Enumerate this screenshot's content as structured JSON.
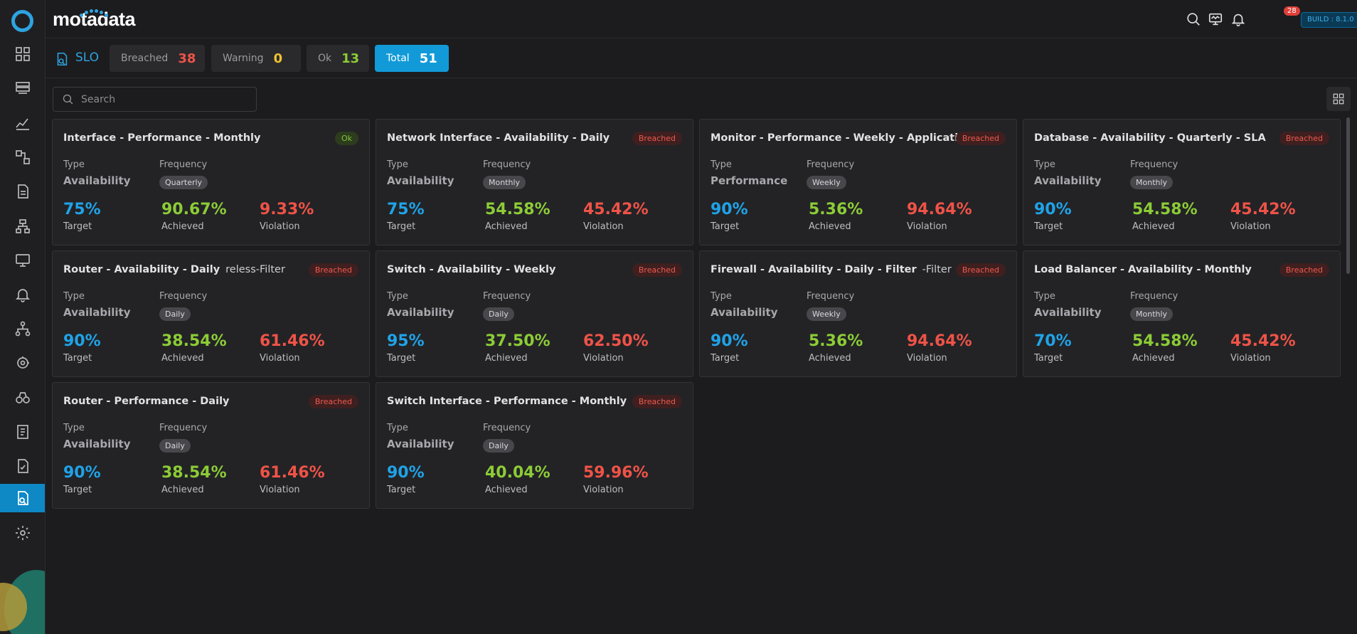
{
  "brand": {
    "name": "motadata"
  },
  "sidebar": {
    "items": [
      {
        "icon": "dashboard-icon"
      },
      {
        "icon": "inventory-icon"
      },
      {
        "icon": "metric-explorer-icon"
      },
      {
        "icon": "flow-icon"
      },
      {
        "icon": "log-icon"
      },
      {
        "icon": "topology-icon"
      },
      {
        "icon": "monitor-icon"
      },
      {
        "icon": "alert-bell-icon"
      },
      {
        "icon": "network-icon"
      },
      {
        "icon": "automation-icon"
      },
      {
        "icon": "binoculars-icon"
      },
      {
        "icon": "report-icon"
      },
      {
        "icon": "audit-icon"
      },
      {
        "icon": "slo-icon",
        "active": true
      },
      {
        "icon": "settings-icon"
      }
    ]
  },
  "header": {
    "notification_count": "28",
    "build_label": "BUILD : 8.1.0"
  },
  "page": {
    "title": "SLO",
    "chips": [
      {
        "label": "Breached",
        "value": "38",
        "color": "#ef5347"
      },
      {
        "label": "Warning",
        "value": "0",
        "color": "#f2c230"
      },
      {
        "label": "Ok",
        "value": "13",
        "color": "#8ccc36"
      },
      {
        "label": "Total",
        "value": "51",
        "color": "#ffffff",
        "selected": true
      }
    ]
  },
  "search": {
    "placeholder": "Search",
    "value": ""
  },
  "cards": [
    {
      "title": "Interface - Performance - Monthly",
      "title_tail": "",
      "status": "Ok",
      "type_label": "Type",
      "type": "Availability",
      "frequency_label": "Frequency",
      "frequency": "Quarterly",
      "target": "75%",
      "achieved": "90.67%",
      "violation": "9.33%",
      "target_label": "Target",
      "achieved_label": "Achieved",
      "violation_label": "Violation"
    },
    {
      "title": "Network Interface - Availability - Daily",
      "title_tail": "",
      "status": "Breached",
      "type_label": "Type",
      "type": "Availability",
      "frequency_label": "Frequency",
      "frequency": "Monthly",
      "target": "75%",
      "achieved": "54.58%",
      "violation": "45.42%",
      "target_label": "Target",
      "achieved_label": "Achieved",
      "violation_label": "Violation"
    },
    {
      "title": "Monitor - Performance - Weekly - Application",
      "title_tail": "",
      "status": "Breached",
      "type_label": "Type",
      "type": "Performance",
      "frequency_label": "Frequency",
      "frequency": "Weekly",
      "target": "90%",
      "achieved": "5.36%",
      "violation": "94.64%",
      "target_label": "Target",
      "achieved_label": "Achieved",
      "violation_label": "Violation"
    },
    {
      "title": "Database - Availability - Quarterly - SLA",
      "title_tail": "",
      "status": "Breached",
      "type_label": "Type",
      "type": "Availability",
      "frequency_label": "Frequency",
      "frequency": "Monthly",
      "target": "90%",
      "achieved": "54.58%",
      "violation": "45.42%",
      "target_label": "Target",
      "achieved_label": "Achieved",
      "violation_label": "Violation"
    },
    {
      "title": "Router - Availability - Daily",
      "title_tail": "reless-Filter",
      "status": "Breached",
      "type_label": "Type",
      "type": "Availability",
      "frequency_label": "Frequency",
      "frequency": "Daily",
      "target": "90%",
      "achieved": "38.54%",
      "violation": "61.46%",
      "target_label": "Target",
      "achieved_label": "Achieved",
      "violation_label": "Violation"
    },
    {
      "title": "Switch - Availability - Weekly",
      "title_tail": "",
      "status": "Breached",
      "type_label": "Type",
      "type": "Availability",
      "frequency_label": "Frequency",
      "frequency": "Daily",
      "target": "95%",
      "achieved": "37.50%",
      "violation": "62.50%",
      "target_label": "Target",
      "achieved_label": "Achieved",
      "violation_label": "Violation"
    },
    {
      "title": "Firewall - Availability - Daily - Filter",
      "title_tail": "-Filter",
      "status": "Breached",
      "type_label": "Type",
      "type": "Availability",
      "frequency_label": "Frequency",
      "frequency": "Weekly",
      "target": "90%",
      "achieved": "5.36%",
      "violation": "94.64%",
      "target_label": "Target",
      "achieved_label": "Achieved",
      "violation_label": "Violation"
    },
    {
      "title": "Load Balancer - Availability - Monthly",
      "title_tail": "",
      "status": "Breached",
      "type_label": "Type",
      "type": "Availability",
      "frequency_label": "Frequency",
      "frequency": "Monthly",
      "target": "70%",
      "achieved": "54.58%",
      "violation": "45.42%",
      "target_label": "Target",
      "achieved_label": "Achieved",
      "violation_label": "Violation"
    },
    {
      "title": "Router - Performance - Daily",
      "title_tail": "",
      "status": "Breached",
      "type_label": "Type",
      "type": "Availability",
      "frequency_label": "Frequency",
      "frequency": "Daily",
      "target": "90%",
      "achieved": "38.54%",
      "violation": "61.46%",
      "target_label": "Target",
      "achieved_label": "Achieved",
      "violation_label": "Violation"
    },
    {
      "title": "Switch Interface - Performance - Monthly",
      "title_tail": "",
      "status": "Breached",
      "type_label": "Type",
      "type": "Availability",
      "frequency_label": "Frequency",
      "frequency": "Daily",
      "target": "90%",
      "achieved": "40.04%",
      "violation": "59.96%",
      "target_label": "Target",
      "achieved_label": "Achieved",
      "violation_label": "Violation"
    }
  ]
}
